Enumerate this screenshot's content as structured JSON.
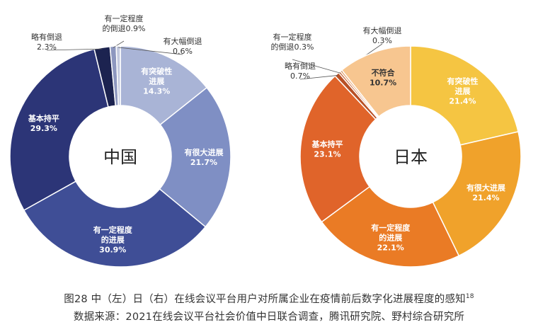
{
  "chart_data": [
    {
      "type": "pie",
      "title": "中国",
      "slices": [
        {
          "label": "有突破性进展",
          "value": 14.3,
          "display": "14.3%",
          "color": "#a9b4d6"
        },
        {
          "label": "有很大进展",
          "value": 21.7,
          "display": "21.7%",
          "color": "#7f8fc4"
        },
        {
          "label": "有一定程度的进展",
          "value": 30.9,
          "display": "30.9%",
          "color": "#3f4e96"
        },
        {
          "label": "基本持平",
          "value": 29.3,
          "display": "29.3%",
          "color": "#2c3577"
        },
        {
          "label": "略有倒退",
          "value": 2.3,
          "display": "2.3%",
          "color": "#1c2350"
        },
        {
          "label": "有一定程度的倒退",
          "value": 0.9,
          "display": "0.9%",
          "color": "#8d97bf"
        },
        {
          "label": "有大幅倒退",
          "value": 0.6,
          "display": "0.6%",
          "color": "#c3c9de"
        }
      ]
    },
    {
      "type": "pie",
      "title": "日本",
      "slices": [
        {
          "label": "有突破性进展",
          "value": 21.4,
          "display": "21.4%",
          "color": "#f5c542"
        },
        {
          "label": "有很大进展",
          "value": 21.4,
          "display": "21.4%",
          "color": "#f0a22b"
        },
        {
          "label": "有一定程度的进展",
          "value": 22.1,
          "display": "22.1%",
          "color": "#ea7b25"
        },
        {
          "label": "基本持平",
          "value": 23.1,
          "display": "23.1%",
          "color": "#e0642a"
        },
        {
          "label": "略有倒退",
          "value": 0.7,
          "display": "0.7%",
          "color": "#b85025"
        },
        {
          "label": "有一定程度的倒退",
          "value": 0.3,
          "display": "0.3%",
          "color": "#c9683a"
        },
        {
          "label": "有大幅倒退",
          "value": 0.3,
          "display": "0.3%",
          "color": "#e8a772"
        },
        {
          "label": "不符合",
          "value": 10.7,
          "display": "10.7%",
          "color": "#f7c690"
        }
      ]
    }
  ],
  "caption": {
    "line1": "图28 中（左）日（右）在线会议平台用户对所属企业在疫情前后数字化进展程度的感知",
    "footnote": "18",
    "line2": "数据来源：2021在线会议平台社会价值中日联合调查，腾讯研究院、野村综合研究所"
  }
}
